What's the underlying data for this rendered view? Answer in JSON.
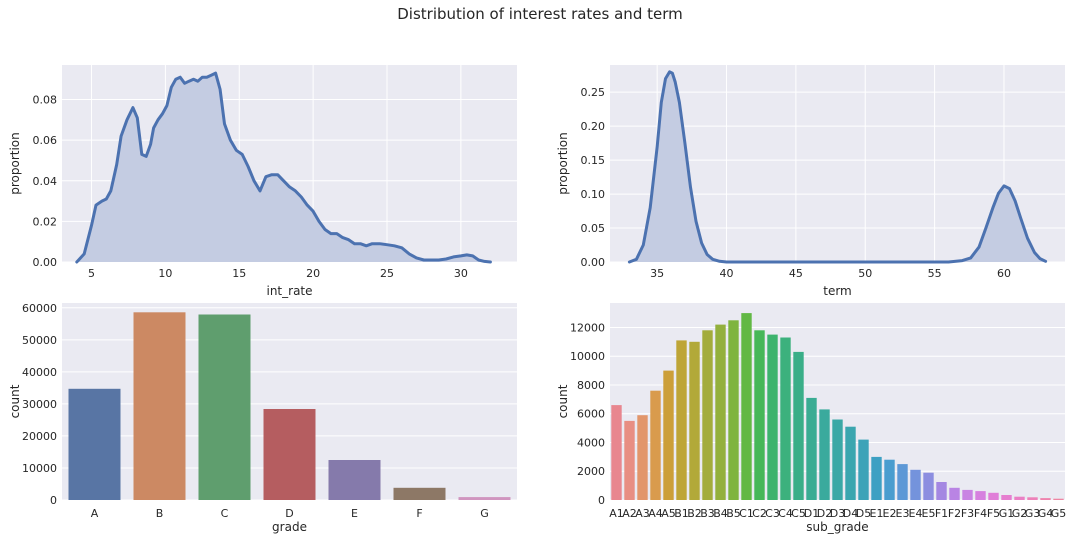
{
  "figure": {
    "suptitle": "Distribution of interest rates and term"
  },
  "chart_data": [
    {
      "type": "area",
      "id": "int_rate_kde",
      "xlabel": "int_rate",
      "ylabel": "proportion",
      "xlim": [
        3.0,
        33.8
      ],
      "ylim": [
        0,
        0.097
      ],
      "xticks": [
        5,
        10,
        15,
        20,
        25,
        30
      ],
      "yticks": [
        0.0,
        0.02,
        0.04,
        0.06,
        0.08
      ],
      "ytick_format": 2,
      "grid": true,
      "color": "#4c72b0",
      "fill_color": "#c4cce2",
      "x": [
        4.0,
        4.5,
        5.0,
        5.3,
        5.7,
        6.0,
        6.3,
        6.7,
        7.0,
        7.4,
        7.8,
        8.1,
        8.4,
        8.7,
        9.0,
        9.2,
        9.5,
        9.8,
        10.1,
        10.4,
        10.7,
        11.0,
        11.3,
        11.6,
        11.9,
        12.2,
        12.5,
        12.8,
        13.1,
        13.4,
        13.7,
        14.0,
        14.4,
        14.8,
        15.2,
        15.6,
        16.0,
        16.4,
        16.8,
        17.2,
        17.6,
        18.0,
        18.4,
        18.8,
        19.2,
        19.6,
        20.0,
        20.4,
        20.8,
        21.2,
        21.6,
        22.0,
        22.4,
        22.8,
        23.2,
        23.6,
        24.0,
        24.5,
        25.0,
        25.5,
        26.0,
        26.5,
        27.0,
        27.5,
        28.0,
        28.5,
        29.0,
        29.5,
        30.0,
        30.4,
        30.8,
        31.2,
        31.6,
        32.0
      ],
      "y": [
        0.0,
        0.004,
        0.018,
        0.028,
        0.03,
        0.031,
        0.035,
        0.048,
        0.062,
        0.07,
        0.076,
        0.071,
        0.053,
        0.052,
        0.058,
        0.066,
        0.07,
        0.073,
        0.077,
        0.086,
        0.09,
        0.091,
        0.088,
        0.089,
        0.09,
        0.089,
        0.091,
        0.091,
        0.092,
        0.093,
        0.085,
        0.068,
        0.06,
        0.055,
        0.053,
        0.047,
        0.04,
        0.035,
        0.042,
        0.043,
        0.043,
        0.04,
        0.037,
        0.035,
        0.032,
        0.028,
        0.025,
        0.02,
        0.016,
        0.014,
        0.014,
        0.012,
        0.011,
        0.009,
        0.009,
        0.008,
        0.009,
        0.009,
        0.0085,
        0.008,
        0.007,
        0.004,
        0.002,
        0.001,
        0.001,
        0.001,
        0.0015,
        0.0025,
        0.003,
        0.0035,
        0.003,
        0.001,
        0.0003,
        0.0
      ]
    },
    {
      "type": "area",
      "id": "term_kde",
      "xlabel": "term",
      "ylabel": "proportion",
      "xlim": [
        31.6,
        64.4
      ],
      "ylim": [
        0,
        0.29
      ],
      "xticks": [
        35,
        40,
        45,
        50,
        55,
        60
      ],
      "yticks": [
        0.0,
        0.05,
        0.1,
        0.15,
        0.2,
        0.25
      ],
      "ytick_format": 2,
      "grid": true,
      "color": "#4c72b0",
      "fill_color": "#c4cce2",
      "x": [
        33.0,
        33.5,
        34.0,
        34.5,
        35.0,
        35.3,
        35.6,
        35.9,
        36.1,
        36.3,
        36.6,
        37.0,
        37.4,
        37.8,
        38.2,
        38.6,
        39.0,
        39.5,
        40.0,
        45.0,
        50.0,
        55.0,
        56.0,
        57.0,
        57.6,
        58.2,
        58.7,
        59.2,
        59.6,
        60.0,
        60.4,
        60.8,
        61.2,
        61.7,
        62.2,
        62.6,
        63.0
      ],
      "y": [
        0.0,
        0.004,
        0.025,
        0.08,
        0.17,
        0.235,
        0.27,
        0.28,
        0.278,
        0.265,
        0.235,
        0.175,
        0.11,
        0.06,
        0.028,
        0.011,
        0.004,
        0.001,
        0.0,
        0.0,
        0.0,
        0.0,
        0.0,
        0.002,
        0.006,
        0.022,
        0.05,
        0.08,
        0.101,
        0.112,
        0.108,
        0.09,
        0.065,
        0.035,
        0.014,
        0.005,
        0.001
      ]
    },
    {
      "type": "bar",
      "id": "grade_count",
      "xlabel": "grade",
      "ylabel": "count",
      "ylim": [
        0,
        61500
      ],
      "yticks": [
        0,
        10000,
        20000,
        30000,
        40000,
        50000,
        60000
      ],
      "ytick_format": 0,
      "grid": true,
      "categories": [
        "A",
        "B",
        "C",
        "D",
        "E",
        "F",
        "G"
      ],
      "values": [
        34700,
        58600,
        57900,
        28400,
        12500,
        3800,
        900
      ],
      "colors": [
        "#5875a4",
        "#cc8963",
        "#5f9e6e",
        "#b55d60",
        "#857aab",
        "#8d7866",
        "#d095bf"
      ]
    },
    {
      "type": "bar",
      "id": "sub_grade_count",
      "xlabel": "sub_grade",
      "ylabel": "count",
      "ylim": [
        0,
        13700
      ],
      "yticks": [
        0,
        2000,
        4000,
        6000,
        8000,
        10000,
        12000
      ],
      "ytick_format": 0,
      "grid": true,
      "categories": [
        "A1",
        "A2",
        "A3",
        "A4",
        "A5",
        "B1",
        "B2",
        "B3",
        "B4",
        "B5",
        "C1",
        "C2",
        "C3",
        "C4",
        "C5",
        "D1",
        "D2",
        "D3",
        "D4",
        "D5",
        "E1",
        "E2",
        "E3",
        "E4",
        "E5",
        "F1",
        "F2",
        "F3",
        "F4",
        "F5",
        "G1",
        "G2",
        "G3",
        "G4",
        "G5"
      ],
      "values": [
        6600,
        5500,
        5900,
        7600,
        9000,
        11100,
        11000,
        11800,
        12200,
        12500,
        13000,
        11800,
        11500,
        11300,
        10300,
        7100,
        6300,
        5600,
        5100,
        4200,
        3000,
        2800,
        2500,
        2100,
        1900,
        1250,
        850,
        700,
        620,
        500,
        350,
        230,
        190,
        130,
        90
      ],
      "colors": [
        "#e8868f",
        "#e88e83",
        "#e2966b",
        "#d99b4d",
        "#cc9f39",
        "#bea537",
        "#b2a939",
        "#a3ac3c",
        "#93b03d",
        "#7fb43f",
        "#62b844",
        "#46b758",
        "#3db36d",
        "#3cb17d",
        "#3aae88",
        "#3aac93",
        "#3aaa9d",
        "#3ba8a6",
        "#3ba6af",
        "#3ca3b8",
        "#3da0c3",
        "#4a9dcf",
        "#5d98d6",
        "#7493dc",
        "#8c8ee0",
        "#a487e2",
        "#b984e4",
        "#c983e3",
        "#d680df",
        "#e07ed8",
        "#e67ed0",
        "#ea80c5",
        "#ed81b9",
        "#ee83ae",
        "#ee85a3"
      ]
    }
  ]
}
